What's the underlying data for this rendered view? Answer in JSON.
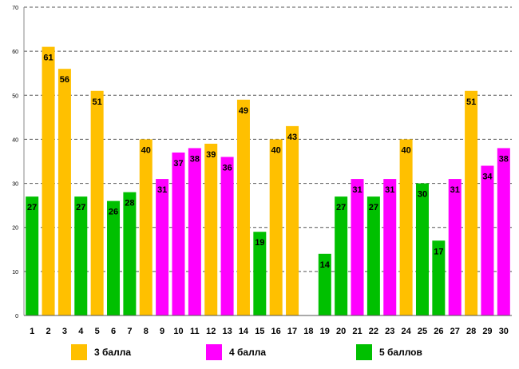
{
  "chart_data": {
    "type": "bar",
    "categories": [
      "1",
      "2",
      "3",
      "4",
      "5",
      "6",
      "7",
      "8",
      "9",
      "10",
      "11",
      "12",
      "13",
      "14",
      "15",
      "16",
      "17",
      "18",
      "19",
      "20",
      "21",
      "22",
      "23",
      "24",
      "25",
      "26",
      "27",
      "28",
      "29",
      "30"
    ],
    "values": [
      27,
      61,
      56,
      27,
      51,
      26,
      28,
      40,
      31,
      37,
      38,
      39,
      36,
      49,
      19,
      40,
      43,
      null,
      14,
      27,
      31,
      27,
      31,
      40,
      30,
      17,
      31,
      51,
      34,
      38
    ],
    "groups": [
      "5",
      "3",
      "3",
      "5",
      "3",
      "5",
      "5",
      "3",
      "4",
      "4",
      "4",
      "3",
      "4",
      "3",
      "5",
      "3",
      "3",
      null,
      "5",
      "5",
      "4",
      "5",
      "4",
      "3",
      "5",
      "5",
      "4",
      "3",
      "4",
      "4"
    ],
    "ylim": [
      0,
      70
    ],
    "yticks": [
      0,
      10,
      20,
      30,
      40,
      50,
      60,
      70
    ],
    "grid": true,
    "legend_placement": "bottom",
    "legend": [
      {
        "key": "3",
        "label": "3 балла",
        "color": "#FFC000"
      },
      {
        "key": "4",
        "label": "4 балла",
        "color": "#FF00FF"
      },
      {
        "key": "5",
        "label": "5 баллов",
        "color": "#00C000"
      }
    ]
  }
}
